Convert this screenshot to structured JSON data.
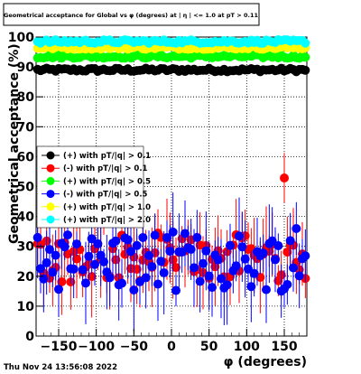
{
  "chart_data": {
    "type": "scatter",
    "title": "Geometrical acceptance for Global vs φ (degrees) at | η | <= 1.0 at pT > 0.11",
    "xlabel": "φ (degrees)",
    "ylabel": "Geometrical acceptance (%)",
    "xlim": [
      -180,
      180
    ],
    "ylim": [
      0,
      100
    ],
    "x_ticks": [
      "−150",
      "−100",
      "−50",
      "0",
      "50",
      "100",
      "150"
    ],
    "x_tick_values": [
      -150,
      -100,
      -50,
      0,
      50,
      100,
      150
    ],
    "y_ticks": [
      "0",
      "10",
      "20",
      "30",
      "40",
      "50",
      "60",
      "70",
      "80",
      "90",
      "100"
    ],
    "y_tick_values": [
      0,
      10,
      20,
      30,
      40,
      50,
      60,
      70,
      80,
      90,
      100
    ],
    "grid": true,
    "legend_placement": "middle-left",
    "series": [
      {
        "name": "(+) with pT/|q| > 0.1",
        "color": "#000000",
        "level": 89,
        "spread": 0.6,
        "low_spread": 0
      },
      {
        "name": "(-) with pT/|q| > 0.1",
        "color": "#ff0000",
        "level": 26,
        "spread": 8,
        "low_spread": 1
      },
      {
        "name": "(+) with pT/|q| > 0.5",
        "color": "#00ff00",
        "level": 93.5,
        "spread": 0.6,
        "low_spread": 0
      },
      {
        "name": "(-) with pT/|q| > 0.5",
        "color": "#0000ff",
        "level": 25,
        "spread": 10,
        "low_spread": 1
      },
      {
        "name": "(+) with pT/|q| > 1.0",
        "color": "#ffff00",
        "level": 96.5,
        "spread": 0.6,
        "low_spread": 0
      },
      {
        "name": "(+) with pT/|q| > 2.0",
        "color": "#00ffff",
        "level": 98.5,
        "spread": 0.6,
        "low_spread": 0
      }
    ]
  },
  "footer": {
    "timestamp": "Thu Nov 24 13:56:08 2022"
  }
}
